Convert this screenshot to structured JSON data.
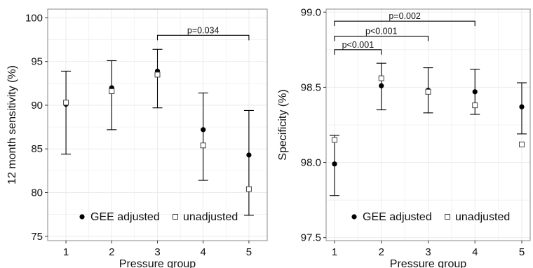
{
  "colors": {
    "panel_border": "#888888",
    "grid": "#ebebeb",
    "marks": "#000000",
    "background": "#ffffff"
  },
  "chart_data": [
    {
      "type": "scatter",
      "title": "",
      "xlabel": "Pressure group",
      "ylabel": "12 month sensitivity (%)",
      "x": [
        1,
        2,
        3,
        4,
        5
      ],
      "xlim": [
        0.6,
        5.4
      ],
      "ylim": [
        74.5,
        101.0
      ],
      "yticks": [
        75,
        80,
        85,
        90,
        95,
        100
      ],
      "xticks": [
        1,
        2,
        3,
        4,
        5
      ],
      "series": [
        {
          "name": "GEE adjusted",
          "marker": "filled-circle",
          "values": [
            90.1,
            92.0,
            93.9,
            87.2,
            84.3
          ],
          "ci_low": [
            84.4,
            87.2,
            89.7,
            81.4,
            77.4
          ],
          "ci_high": [
            93.9,
            95.1,
            96.4,
            91.4,
            89.4
          ]
        },
        {
          "name": "unadjusted",
          "marker": "open-square",
          "values": [
            90.3,
            91.6,
            93.5,
            85.4,
            80.4
          ]
        }
      ],
      "annotations": [
        {
          "from": 3,
          "to": 5,
          "label": "p=0.034",
          "y": 98.0
        }
      ],
      "grid": true,
      "legend": "bottom"
    },
    {
      "type": "scatter",
      "title": "",
      "xlabel": "Pressure group",
      "ylabel": "Specificity (%)",
      "x": [
        1,
        2,
        3,
        4,
        5
      ],
      "xlim": [
        0.82,
        5.18
      ],
      "ylim": [
        97.48,
        99.02
      ],
      "yticks": [
        "97.5",
        "98.0",
        "98.5",
        "99.0"
      ],
      "xticks": [
        1,
        2,
        3,
        4,
        5
      ],
      "series": [
        {
          "name": "GEE adjusted",
          "marker": "filled-circle",
          "values": [
            97.99,
            98.51,
            98.48,
            98.47,
            98.37
          ],
          "ci_low": [
            97.78,
            98.35,
            98.33,
            98.32,
            98.19
          ],
          "ci_high": [
            98.18,
            98.66,
            98.63,
            98.62,
            98.53
          ]
        },
        {
          "name": "unadjusted",
          "marker": "open-square",
          "values": [
            98.15,
            98.56,
            98.47,
            98.38,
            98.12
          ]
        }
      ],
      "annotations": [
        {
          "from": 1,
          "to": 2,
          "label": "p<0.001",
          "y": 98.75
        },
        {
          "from": 1,
          "to": 3,
          "label": "p<0.001",
          "y": 98.84
        },
        {
          "from": 1,
          "to": 4,
          "label": "p=0.002",
          "y": 98.94
        }
      ],
      "grid": true,
      "legend": "bottom"
    }
  ]
}
